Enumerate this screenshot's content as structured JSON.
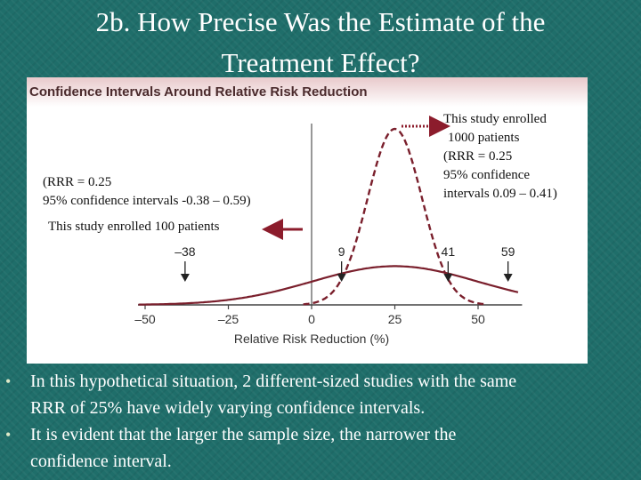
{
  "slide_title_line1": "2b. How Precise Was the Estimate of the",
  "slide_title_line2": "Treatment Effect?",
  "chart_data": {
    "type": "line",
    "title": "Confidence Intervals Around Relative Risk Reduction",
    "xlabel": "Relative Risk Reduction (%)",
    "xlim": [
      -50,
      60
    ],
    "x_ticks": [
      -50,
      -25,
      0,
      25,
      50
    ],
    "x_tick_labels": [
      "–50",
      "–25",
      "0",
      "25",
      "50"
    ],
    "series": [
      {
        "name": "This study enrolled 100 patients",
        "style": "solid",
        "color": "#7a1f2c",
        "point_estimate": 25,
        "ci": [
          -38,
          59
        ],
        "peak_relative_height": 0.22
      },
      {
        "name": "This study enrolled 1000 patients",
        "style": "dashed",
        "color": "#7a1f2c",
        "point_estimate": 25,
        "ci": [
          9,
          41
        ],
        "peak_relative_height": 1.0
      }
    ],
    "ci_markers": [
      {
        "value": -38,
        "label": "–38"
      },
      {
        "value": 9,
        "label": "9"
      },
      {
        "value": 41,
        "label": "41"
      },
      {
        "value": 59,
        "label": "59"
      }
    ],
    "annotations": {
      "small_study_line1": "(RRR = 0.25",
      "small_study_line2": "95% confidence intervals -0.38 – 0.59)",
      "small_study_enrolled": "This study enrolled 100 patients",
      "large_study_line1": "This study enrolled",
      "large_study_line2": "1000 patients",
      "large_study_line3": "(RRR = 0.25",
      "large_study_line4": "95% confidence",
      "large_study_line5": "intervals 0.09 – 0.41)"
    }
  },
  "bullets": [
    {
      "line1": "In this hypothetical situation, 2 different-sized studies with the same",
      "line2": "RRR of 25% have widely varying confidence intervals."
    },
    {
      "line1": "It is evident that the larger the sample size, the narrower the",
      "line2": "confidence interval."
    }
  ],
  "bullet_symbol": "•"
}
